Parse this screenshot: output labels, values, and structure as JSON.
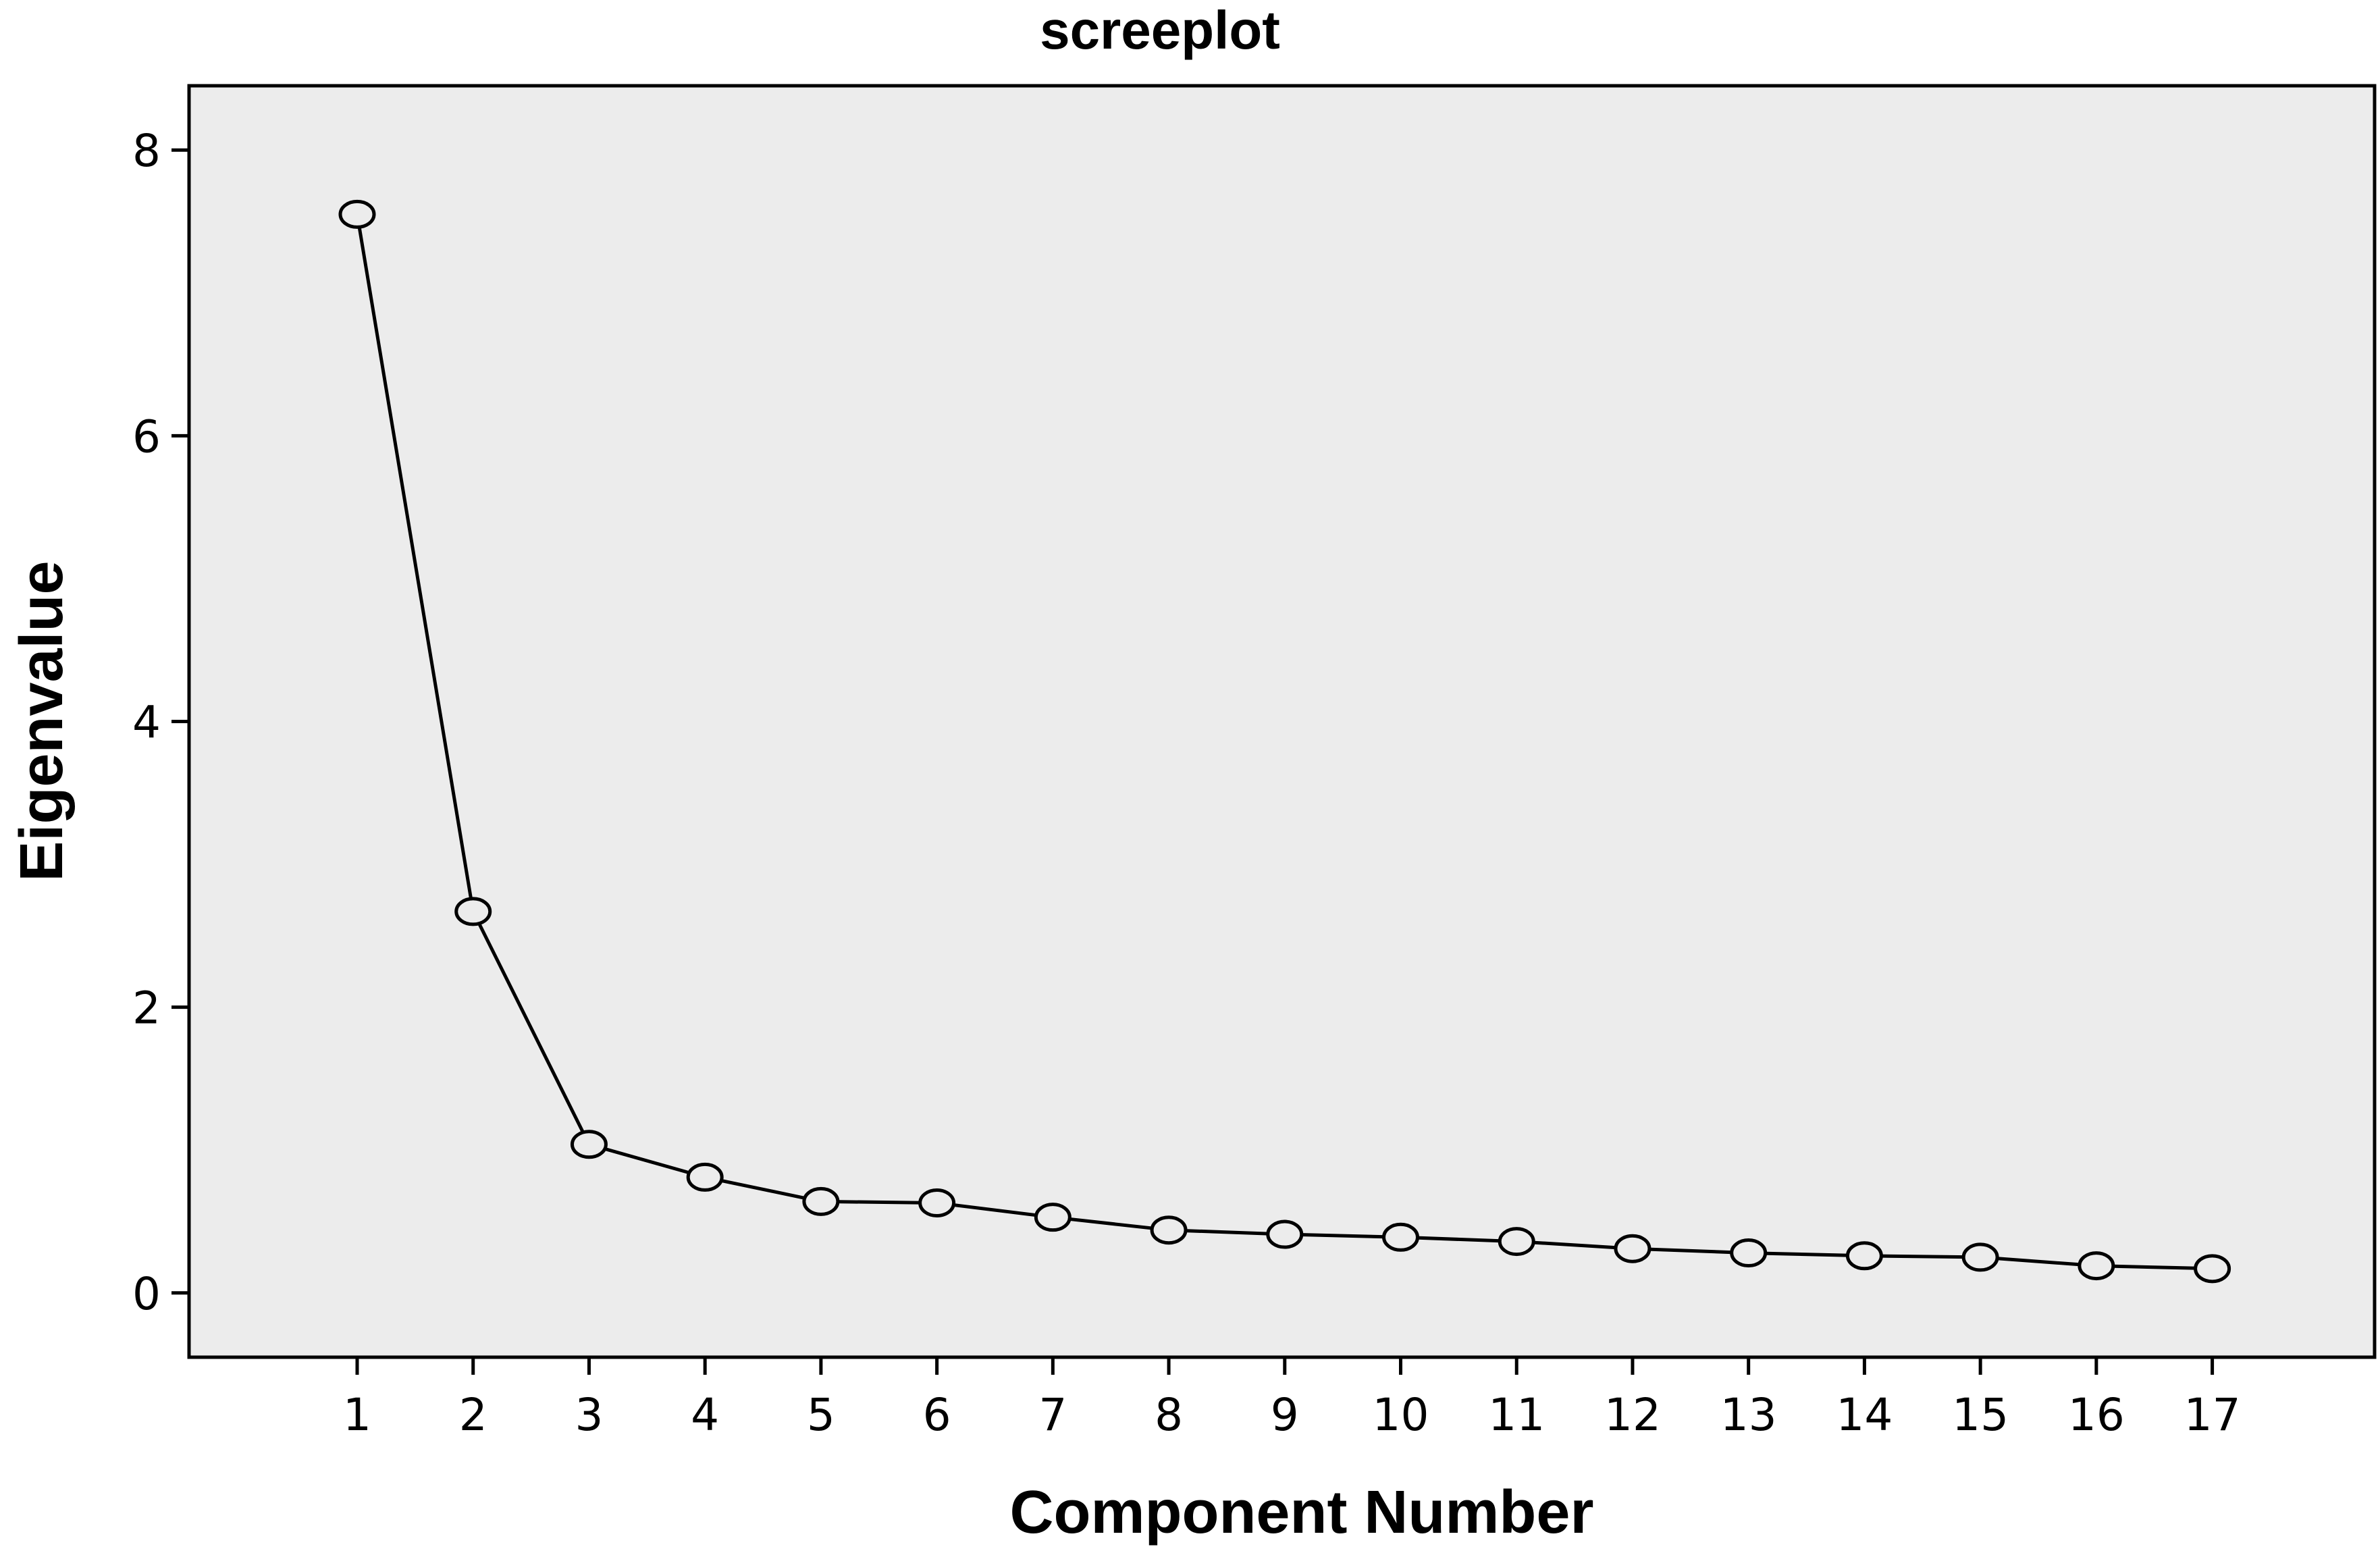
{
  "chart_data": {
    "type": "line",
    "title": "screeplot",
    "xlabel": "Component Number",
    "ylabel": "Eigenvalue",
    "x": [
      1,
      2,
      3,
      4,
      5,
      6,
      7,
      8,
      9,
      10,
      11,
      12,
      13,
      14,
      15,
      16,
      17
    ],
    "series": [
      {
        "values": [
          7.55,
          2.67,
          1.04,
          0.81,
          0.64,
          0.63,
          0.53,
          0.44,
          0.41,
          0.39,
          0.36,
          0.31,
          0.28,
          0.26,
          0.25,
          0.19,
          0.17
        ]
      }
    ],
    "xlim": [
      -0.45,
      18.4
    ],
    "ylim": [
      -0.45,
      8.45
    ],
    "x_ticks": [
      "1",
      "2",
      "3",
      "4",
      "5",
      "6",
      "7",
      "8",
      "9",
      "10",
      "11",
      "12",
      "13",
      "14",
      "15",
      "16",
      "17"
    ],
    "y_ticks": [
      "0",
      "2",
      "4",
      "6",
      "8"
    ],
    "marker": "open-circle",
    "grid": false,
    "legend": "none",
    "colors": {
      "plot_background": "#ececec",
      "line": "#000000",
      "frame": "#000000"
    }
  }
}
